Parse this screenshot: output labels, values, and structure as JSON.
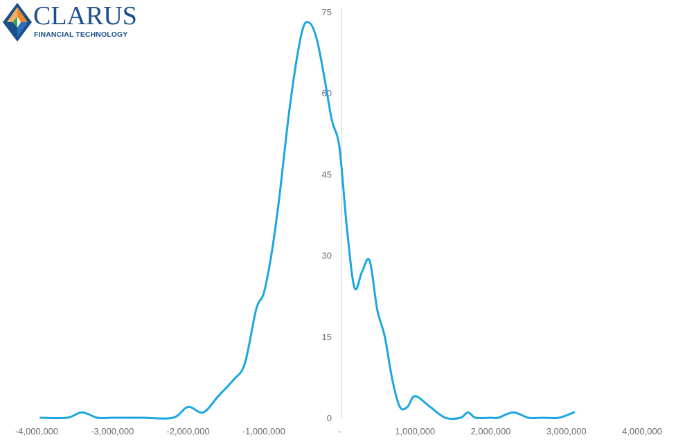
{
  "logo": {
    "brand": "CLARUS",
    "tagline": "FINANCIAL TECHNOLOGY",
    "colors": {
      "blue": "#1b4f8c",
      "orange": "#e8892b",
      "green": "#3aa655"
    }
  },
  "chart_data": {
    "type": "line",
    "title": "",
    "xlabel": "",
    "ylabel": "",
    "xlim": [
      -4000000,
      4000000
    ],
    "ylim": [
      0,
      75
    ],
    "x_ticks": [
      -4000000,
      -3000000,
      -2000000,
      -1000000,
      0,
      1000000,
      2000000,
      3000000,
      4000000
    ],
    "x_tick_labels": [
      "-4,000,000",
      "-3,000,000",
      "-2,000,000",
      "-1,000,000",
      "-",
      "1,000,000",
      "2,000,000",
      "3,000,000",
      "4,000,000"
    ],
    "y_ticks": [
      0,
      15,
      30,
      45,
      60,
      75
    ],
    "y_tick_labels": [
      "0",
      "15",
      "30",
      "45",
      "60",
      "75"
    ],
    "grid": false,
    "line_color": "#1aa7e0",
    "series": [
      {
        "x": [
          -3950000,
          -3600000,
          -3400000,
          -3200000,
          -3000000,
          -2600000,
          -2200000,
          -2000000,
          -1800000,
          -1600000,
          -1400000,
          -1250000,
          -1100000,
          -1000000,
          -900000,
          -800000,
          -650000,
          -500000,
          -400000,
          -300000,
          -200000,
          -100000,
          0,
          100000,
          200000,
          300000,
          400000,
          500000,
          600000,
          700000,
          800000,
          900000,
          1000000,
          1200000,
          1400000,
          1600000,
          1700000,
          1800000,
          2000000,
          2100000,
          2300000,
          2500000,
          2700000,
          2900000,
          3100000
        ],
        "y": [
          0,
          0,
          1,
          0,
          0,
          0,
          0,
          2,
          1,
          4,
          7,
          10,
          20,
          23,
          30,
          40,
          58,
          71,
          73,
          70,
          63,
          55,
          50,
          35,
          24,
          27,
          29,
          20,
          15,
          7,
          2,
          2,
          4,
          2,
          0,
          0,
          1,
          0,
          0,
          0,
          1,
          0,
          0,
          0,
          1
        ]
      }
    ]
  }
}
